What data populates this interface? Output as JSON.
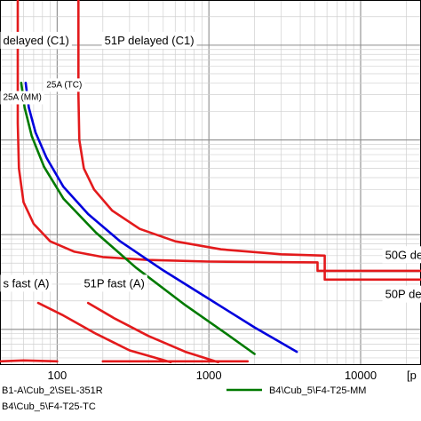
{
  "chart_data": {
    "type": "line",
    "xscale": "log",
    "yscale": "log",
    "xlim": [
      42,
      25000
    ],
    "ylim": [
      0.042,
      300
    ],
    "grid": true,
    "x_ticks": [
      {
        "value": 100,
        "label": "100"
      },
      {
        "value": 1000,
        "label": "1000"
      },
      {
        "value": 10000,
        "label": "10000"
      }
    ],
    "x_unit_label": "[p",
    "annotations": [
      {
        "text": "delayed (C1)",
        "x": 44,
        "y": 110,
        "size": 13
      },
      {
        "text": "51P delayed (C1)",
        "x": 205,
        "y": 110,
        "size": 13
      },
      {
        "text": "25A (TC)",
        "x": 85,
        "y": 38,
        "size": 10
      },
      {
        "text": "25A (MM)",
        "x": 44,
        "y": 28,
        "size": 10
      },
      {
        "text": "s fast (A)",
        "x": 44,
        "y": 0.3,
        "size": 13
      },
      {
        "text": "51P fast (A)",
        "x": 150,
        "y": 0.3,
        "size": 13
      },
      {
        "text": "50G del",
        "x": 14500,
        "y": 0.6,
        "size": 13
      },
      {
        "text": "50P del",
        "x": 14500,
        "y": 0.23,
        "size": 13
      }
    ],
    "series": [
      {
        "color": "#e31a1c",
        "points": [
          [
            55,
            300
          ],
          [
            55,
            15
          ],
          [
            56,
            5
          ],
          [
            60,
            2.2
          ],
          [
            70,
            1.3
          ],
          [
            90,
            0.85
          ],
          [
            130,
            0.66
          ],
          [
            200,
            0.58
          ],
          [
            400,
            0.54
          ],
          [
            1000,
            0.52
          ],
          [
            5200,
            0.51
          ],
          [
            5200,
            0.415
          ],
          [
            25000,
            0.415
          ]
        ]
      },
      {
        "color": "#e31a1c",
        "points": [
          [
            138,
            300
          ],
          [
            138,
            30
          ],
          [
            140,
            10
          ],
          [
            150,
            5
          ],
          [
            175,
            3
          ],
          [
            230,
            1.8
          ],
          [
            350,
            1.15
          ],
          [
            600,
            0.85
          ],
          [
            1200,
            0.7
          ],
          [
            3000,
            0.62
          ],
          [
            5800,
            0.6
          ],
          [
            5800,
            0.335
          ],
          [
            25000,
            0.335
          ]
        ]
      },
      {
        "color": "#0000dd",
        "points": [
          [
            62,
            40
          ],
          [
            65,
            22
          ],
          [
            72,
            12
          ],
          [
            85,
            6.5
          ],
          [
            110,
            3.2
          ],
          [
            160,
            1.65
          ],
          [
            260,
            0.85
          ],
          [
            500,
            0.42
          ],
          [
            1000,
            0.21
          ],
          [
            2000,
            0.105
          ],
          [
            3800,
            0.058
          ]
        ]
      },
      {
        "color": "#007a00",
        "points": [
          [
            58,
            40
          ],
          [
            61,
            22
          ],
          [
            68,
            11
          ],
          [
            82,
            5.2
          ],
          [
            110,
            2.4
          ],
          [
            180,
            1.05
          ],
          [
            330,
            0.45
          ],
          [
            700,
            0.18
          ],
          [
            1300,
            0.09
          ],
          [
            2000,
            0.055
          ]
        ]
      },
      {
        "color": "#e31a1c",
        "points": [
          [
            75,
            0.19
          ],
          [
            110,
            0.14
          ],
          [
            180,
            0.09
          ],
          [
            300,
            0.06
          ],
          [
            560,
            0.045
          ]
        ]
      },
      {
        "color": "#e31a1c",
        "points": [
          [
            160,
            0.19
          ],
          [
            240,
            0.13
          ],
          [
            400,
            0.085
          ],
          [
            700,
            0.058
          ],
          [
            1150,
            0.045
          ]
        ]
      },
      {
        "color": "#e31a1c",
        "points": [
          [
            42,
            0.046
          ],
          [
            60,
            0.047
          ],
          [
            100,
            0.046
          ]
        ]
      },
      {
        "color": "#e31a1c",
        "points": [
          [
            200,
            0.046
          ],
          [
            1800,
            0.046
          ]
        ]
      }
    ],
    "legend": {
      "placement": "bottom",
      "entries": [
        {
          "label": "B1-A\\Cub_2\\SEL-351R",
          "color": "#e31a1c"
        },
        {
          "label": "B4\\Cub_5\\F4-T25-MM",
          "color": "#007a00"
        },
        {
          "label": "B4\\Cub_5\\F4-T25-TC",
          "color": "#0000dd"
        }
      ]
    }
  }
}
